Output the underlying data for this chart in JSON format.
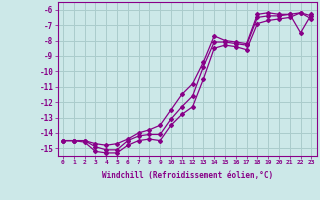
{
  "xlabel": "Windchill (Refroidissement éolien,°C)",
  "bg_color": "#cce8e8",
  "grid_color": "#aacccc",
  "line_color": "#880088",
  "x_min": -0.5,
  "x_max": 23.5,
  "y_min": -15.5,
  "y_max": -5.5,
  "yticks": [
    -6,
    -7,
    -8,
    -9,
    -10,
    -11,
    -12,
    -13,
    -14,
    -15
  ],
  "xticks": [
    0,
    1,
    2,
    3,
    4,
    5,
    6,
    7,
    8,
    9,
    10,
    11,
    12,
    13,
    14,
    15,
    16,
    17,
    18,
    19,
    20,
    21,
    22,
    23
  ],
  "series": [
    {
      "x": [
        0,
        1,
        2,
        3,
        4,
        5,
        6,
        7,
        8,
        9,
        10,
        11,
        12,
        13,
        14,
        15,
        16,
        17,
        18,
        19,
        20,
        21,
        22,
        23
      ],
      "y": [
        -14.5,
        -14.5,
        -14.5,
        -14.7,
        -14.8,
        -14.7,
        -14.4,
        -14.0,
        -13.8,
        -13.5,
        -12.5,
        -11.5,
        -10.8,
        -9.4,
        -7.7,
        -8.0,
        -8.1,
        -8.2,
        -6.3,
        -6.2,
        -6.3,
        -6.3,
        -7.5,
        -6.3
      ]
    },
    {
      "x": [
        0,
        1,
        2,
        3,
        4,
        5,
        6,
        7,
        8,
        9,
        10,
        11,
        12,
        13,
        14,
        15,
        16,
        17,
        18,
        19,
        20,
        21,
        22,
        23
      ],
      "y": [
        -14.5,
        -14.5,
        -14.5,
        -14.9,
        -15.1,
        -15.1,
        -14.5,
        -14.2,
        -14.1,
        -14.1,
        -13.1,
        -12.3,
        -11.6,
        -9.7,
        -8.1,
        -8.1,
        -8.2,
        -8.3,
        -6.5,
        -6.4,
        -6.4,
        -6.3,
        -6.2,
        -6.4
      ]
    },
    {
      "x": [
        0,
        1,
        2,
        3,
        4,
        5,
        6,
        7,
        8,
        9,
        10,
        11,
        12,
        13,
        14,
        15,
        16,
        17,
        18,
        19,
        20,
        21,
        22,
        23
      ],
      "y": [
        -14.5,
        -14.5,
        -14.6,
        -15.2,
        -15.3,
        -15.3,
        -14.8,
        -14.5,
        -14.4,
        -14.5,
        -13.5,
        -12.8,
        -12.3,
        -10.5,
        -8.5,
        -8.3,
        -8.4,
        -8.6,
        -6.9,
        -6.7,
        -6.6,
        -6.5,
        -6.2,
        -6.6
      ]
    }
  ]
}
